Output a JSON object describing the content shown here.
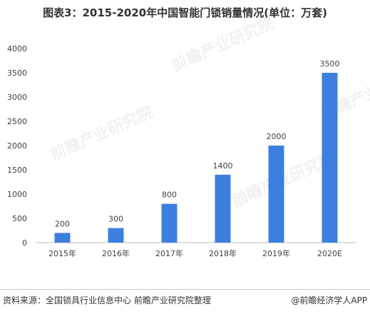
{
  "title": "图表3：2015-2020年中国智能门锁销量情况(单位：万套)",
  "source": "资料来源：全国锁具行业信息中心 前瞻产业研究院整理",
  "credit": "@前瞻经济学人APP",
  "watermark_text": "前瞻产业研究院",
  "colors": {
    "bar": "#3d7fe0",
    "axis": "#bfbfbf",
    "text": "#404040",
    "watermark": "#f1f1f1"
  },
  "chart_data": {
    "type": "bar",
    "title": "图表3：2015-2020年中国智能门锁销量情况(单位：万套)",
    "categories": [
      "2015年",
      "2016年",
      "2017年",
      "2018年",
      "2019年",
      "2020E"
    ],
    "values": [
      200,
      300,
      800,
      1400,
      2000,
      3500
    ],
    "data_labels": [
      "200",
      "300",
      "800",
      "1400",
      "2000",
      "3500"
    ],
    "ylim": [
      0,
      4000
    ],
    "y_ticks": [
      0,
      500,
      1000,
      1500,
      2000,
      2500,
      3000,
      3500,
      4000
    ],
    "y_tick_labels": [
      "0",
      "500",
      "1000",
      "1500",
      "2000",
      "2500",
      "3000",
      "3500",
      "4000"
    ],
    "xlabel": "",
    "ylabel": "",
    "grid": false,
    "legend": "none"
  }
}
